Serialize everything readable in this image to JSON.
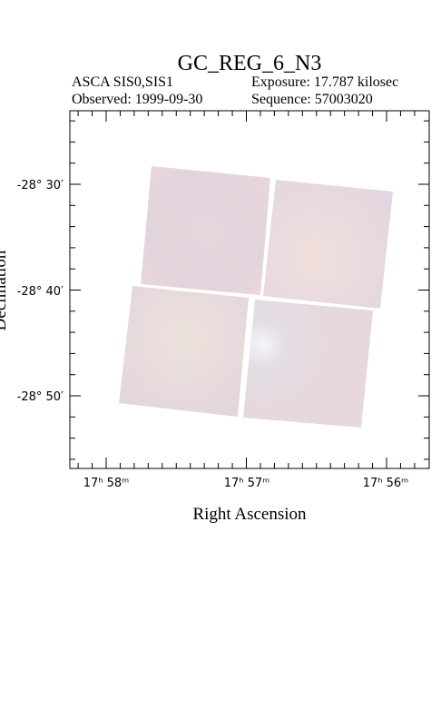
{
  "header": {
    "title": "GC_REG_6_N3",
    "instrument": "ASCA SIS0,SIS1",
    "exposure": "Exposure: 17.787 kilosec",
    "observed": "Observed: 1999-09-30",
    "sequence": "Sequence: 57003020"
  },
  "plot": {
    "x_label": "Right Ascension",
    "y_label": "Declination",
    "x_ticks": [
      "17ʰ 58ᵐ",
      "17ʰ 57ᵐ",
      "17ʰ 56ᵐ"
    ],
    "y_ticks": [
      "-28° 30′",
      "-28° 40′",
      "-28° 50′"
    ]
  }
}
